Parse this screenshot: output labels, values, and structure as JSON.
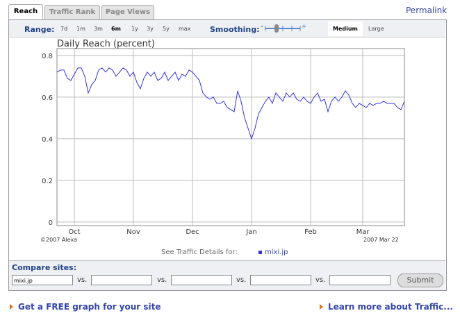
{
  "tabs": [
    "Reach",
    "Traffic Rank",
    "Page Views"
  ],
  "permalink": "Permalink",
  "controls": {
    "range_label": "Range:",
    "ranges": [
      "7d",
      "1m",
      "3m",
      "6m",
      "1y",
      "3y",
      "5y",
      "max"
    ],
    "smoothing_label": "Smoothing:",
    "smoothing_options": [
      "Medium",
      "Large"
    ]
  },
  "chart_data": {
    "type": "line",
    "title": "Daily Reach (percent)",
    "color": "#3333dd",
    "grid": true,
    "categories": [
      null,
      null,
      null,
      null,
      null,
      "Oct",
      null,
      null,
      null,
      null,
      null,
      null,
      null,
      null,
      null,
      null,
      null,
      null,
      null,
      null,
      null,
      null,
      "Nov",
      null,
      null,
      null,
      null,
      null,
      null,
      null,
      null,
      null,
      null,
      null,
      null,
      null,
      null,
      null,
      null,
      "Dec",
      null,
      null,
      null,
      null,
      null,
      null,
      null,
      null,
      null,
      null,
      null,
      null,
      null,
      null,
      null,
      null,
      "Jan",
      null,
      null,
      null,
      null,
      null,
      null,
      null,
      null,
      null,
      null,
      null,
      null,
      null,
      null,
      null,
      null,
      "Feb",
      null,
      null,
      null,
      null,
      null,
      null,
      null,
      null,
      null,
      null,
      null,
      null,
      null,
      null,
      "Mar",
      null,
      null,
      null,
      null,
      null,
      null,
      null,
      null,
      null,
      null,
      null,
      null
    ],
    "values": [
      0.72,
      0.73,
      0.73,
      0.69,
      0.68,
      0.71,
      0.74,
      0.74,
      0.7,
      0.62,
      0.66,
      0.68,
      0.73,
      0.74,
      0.72,
      0.74,
      0.73,
      0.7,
      0.72,
      0.74,
      0.73,
      0.7,
      0.72,
      0.67,
      0.64,
      0.69,
      0.72,
      0.7,
      0.72,
      0.68,
      0.69,
      0.72,
      0.68,
      0.7,
      0.72,
      0.68,
      0.71,
      0.7,
      0.73,
      0.72,
      0.7,
      0.68,
      0.62,
      0.6,
      0.59,
      0.6,
      0.57,
      0.57,
      0.58,
      0.55,
      0.54,
      0.53,
      0.63,
      0.58,
      0.5,
      0.45,
      0.4,
      0.45,
      0.52,
      0.55,
      0.58,
      0.6,
      0.57,
      0.62,
      0.6,
      0.58,
      0.62,
      0.6,
      0.62,
      0.59,
      0.58,
      0.6,
      0.58,
      0.57,
      0.6,
      0.62,
      0.58,
      0.59,
      0.53,
      0.58,
      0.6,
      0.58,
      0.6,
      0.63,
      0.61,
      0.57,
      0.55,
      0.57,
      0.56,
      0.55,
      0.57,
      0.56,
      0.57,
      0.57,
      0.58,
      0.57,
      0.57,
      0.57,
      0.55,
      0.54,
      0.58
    ],
    "ylim": [
      -0.017,
      0.833
    ],
    "yticks": [
      0,
      0.2,
      0.4,
      0.6,
      0.8
    ]
  },
  "chart_footer": {
    "copyright": "©2007 Alexa",
    "date": "2007 Mar 22",
    "details_label": "See Traffic Details for:",
    "details_site": "mixi.jp"
  },
  "compare": {
    "label": "Compare sites:",
    "site": "mixi.jp",
    "vs": "vs.",
    "submit": "Submit"
  },
  "links": [
    "Get a FREE graph for your site",
    "Learn more about Traffic..."
  ]
}
